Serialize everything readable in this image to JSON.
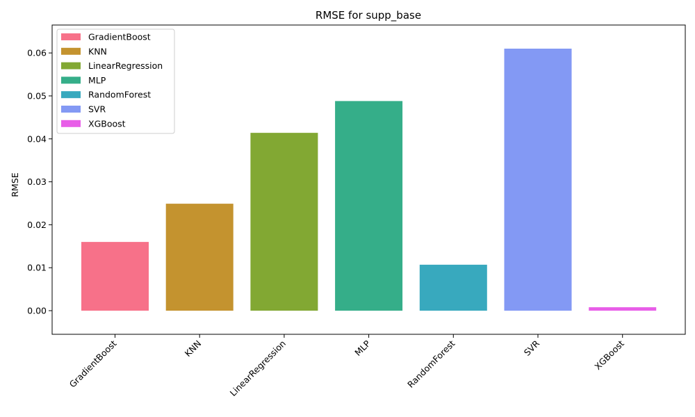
{
  "chart_data": {
    "type": "bar",
    "title": "RMSE for supp_base",
    "xlabel": "",
    "ylabel": "RMSE",
    "categories": [
      "GradientBoost",
      "KNN",
      "LinearRegression",
      "MLP",
      "RandomForest",
      "SVR",
      "XGBoost"
    ],
    "values": [
      0.016,
      0.0249,
      0.0414,
      0.0488,
      0.0107,
      0.061,
      0.0008
    ],
    "colors": [
      "#f77189",
      "#c4932f",
      "#82a833",
      "#35ae89",
      "#38a9be",
      "#8399f4",
      "#e85ee8"
    ],
    "ylim": [
      -0.0055,
      0.0665
    ],
    "yticks": [
      0.0,
      0.01,
      0.02,
      0.03,
      0.04,
      0.05,
      0.06
    ],
    "ytick_labels": [
      "0.00",
      "0.01",
      "0.02",
      "0.03",
      "0.04",
      "0.05",
      "0.06"
    ],
    "grid": false,
    "legend": {
      "placement": "top-left",
      "entries": [
        "GradientBoost",
        "KNN",
        "LinearRegression",
        "MLP",
        "RandomForest",
        "SVR",
        "XGBoost"
      ]
    }
  }
}
